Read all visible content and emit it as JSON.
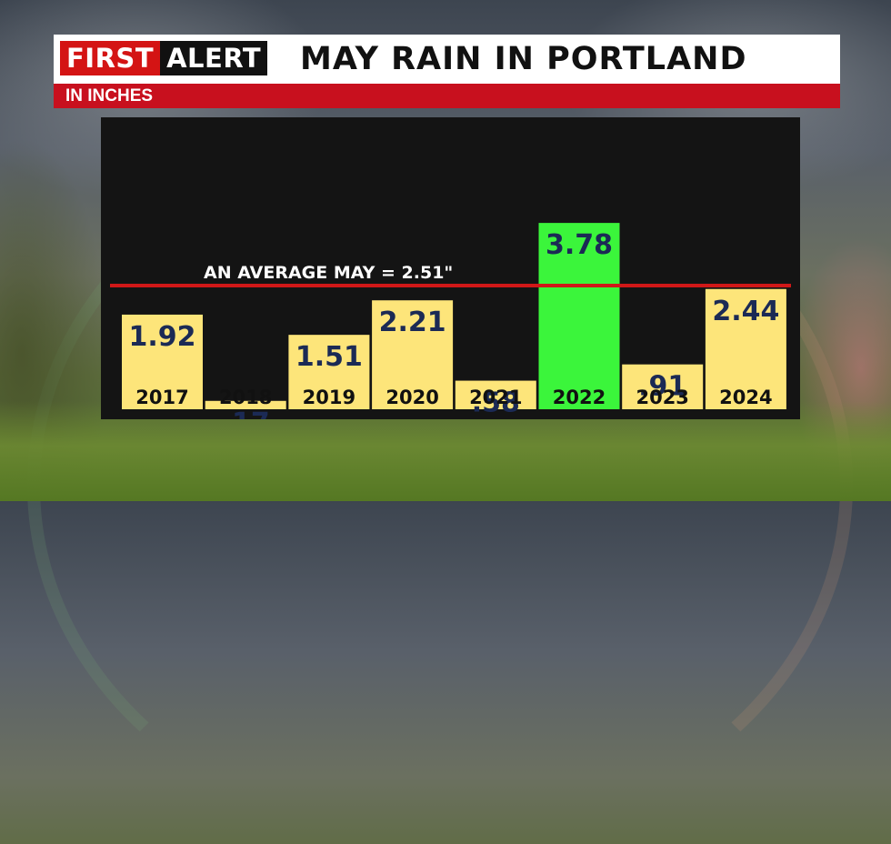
{
  "header": {
    "logo_first": "FIRST",
    "logo_alert": "ALERT",
    "title": "MAY RAIN IN PORTLAND",
    "subtitle": "IN INCHES"
  },
  "colors": {
    "bar_default": "#fde57a",
    "bar_highlight": "#3bf53b",
    "average_line": "#d01818",
    "value_text": "#1b2a55",
    "panel": "#141414"
  },
  "chart_data": {
    "type": "bar",
    "categories": [
      "2017",
      "2018",
      "2019",
      "2020",
      "2021",
      "2022",
      "2023",
      "2024"
    ],
    "values": [
      1.92,
      0.17,
      1.51,
      2.21,
      0.58,
      3.78,
      0.91,
      2.44
    ],
    "value_labels": [
      "1.92",
      ".17",
      "1.51",
      "2.21",
      ".58",
      "3.78",
      ".91",
      "2.44"
    ],
    "highlight_category": "2022",
    "reference_line": {
      "value": 2.51,
      "label": "AN AVERAGE MAY = 2.51\""
    },
    "title": "MAY RAIN IN PORTLAND",
    "subtitle": "IN INCHES",
    "grid": false,
    "legend": "none"
  }
}
